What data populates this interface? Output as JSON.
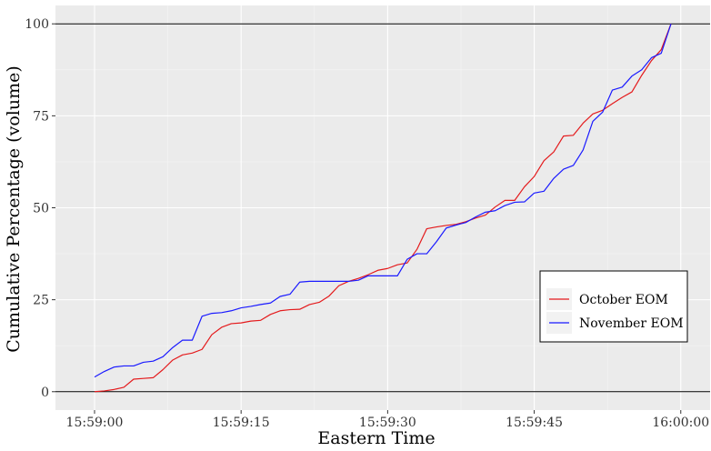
{
  "chart_data": {
    "type": "line",
    "title": "",
    "xlabel": "Eastern Time",
    "ylabel": "Cumulative Percentage (volume)",
    "x_unit": "seconds from 15:59:00",
    "xlim": [
      -4,
      63
    ],
    "ylim": [
      -5,
      105
    ],
    "x_ticks": [
      {
        "value": 0,
        "label": "15:59:00"
      },
      {
        "value": 15,
        "label": "15:59:15"
      },
      {
        "value": 30,
        "label": "15:59:30"
      },
      {
        "value": 45,
        "label": "15:59:45"
      },
      {
        "value": 60,
        "label": "16:00:00"
      }
    ],
    "y_ticks": [
      {
        "value": 0,
        "label": "0"
      },
      {
        "value": 25,
        "label": "25"
      },
      {
        "value": 50,
        "label": "50"
      },
      {
        "value": 75,
        "label": "75"
      },
      {
        "value": 100,
        "label": "100"
      }
    ],
    "hlines": [
      0,
      100
    ],
    "grid": true,
    "legend_position": "bottom-right",
    "series": [
      {
        "name": "October EOM",
        "color": "#e41a1c",
        "x": [
          0,
          1,
          2,
          3,
          4,
          5,
          6,
          7,
          8,
          9,
          10,
          11,
          12,
          13,
          14,
          15,
          16,
          17,
          18,
          19,
          20,
          21,
          22,
          23,
          24,
          25,
          26,
          27,
          28,
          29,
          30,
          31,
          32,
          33,
          34,
          35,
          36,
          37,
          38,
          39,
          40,
          41,
          42,
          43,
          44,
          45,
          46,
          47,
          48,
          49,
          50,
          51,
          52,
          53,
          54,
          55,
          56,
          57,
          58,
          59
        ],
        "y": [
          0,
          0.2,
          0.6,
          1.2,
          3.4,
          3.6,
          3.8,
          6,
          8.6,
          10,
          10.5,
          11.5,
          15.5,
          17.5,
          18.5,
          18.7,
          19.2,
          19.4,
          21,
          22,
          22.3,
          22.4,
          23.7,
          24.3,
          26,
          28.8,
          30,
          30.8,
          31.8,
          33,
          33.5,
          34.5,
          35,
          38.7,
          44.3,
          44.8,
          45.2,
          45.5,
          46.2,
          47.2,
          48,
          50.2,
          52,
          52,
          55.7,
          58.5,
          62.8,
          65.2,
          69.5,
          69.7,
          73,
          75.5,
          76.5,
          78.3,
          80,
          81.5,
          86,
          90,
          93,
          100
        ]
      },
      {
        "name": "November EOM",
        "color": "#1a1aff",
        "x": [
          0,
          1,
          2,
          3,
          4,
          5,
          6,
          7,
          8,
          9,
          10,
          11,
          12,
          13,
          14,
          15,
          16,
          17,
          18,
          19,
          20,
          21,
          22,
          23,
          24,
          25,
          26,
          27,
          28,
          29,
          30,
          31,
          32,
          33,
          34,
          35,
          36,
          37,
          38,
          39,
          40,
          41,
          42,
          43,
          44,
          45,
          46,
          47,
          48,
          49,
          50,
          51,
          52,
          53,
          54,
          55,
          56,
          57,
          58,
          59
        ],
        "y": [
          4,
          5.5,
          6.7,
          7,
          7,
          8,
          8.3,
          9.5,
          12,
          14,
          14,
          20.5,
          21.3,
          21.5,
          22,
          22.8,
          23.2,
          23.7,
          24.1,
          25.9,
          26.5,
          29.8,
          30,
          30,
          30,
          30,
          30,
          30.3,
          31.5,
          31.5,
          31.5,
          31.5,
          36,
          37.5,
          37.5,
          40.8,
          44.5,
          45.3,
          46,
          47.5,
          48.8,
          49.2,
          50.6,
          51.5,
          51.6,
          54,
          54.5,
          58,
          60.5,
          61.5,
          65.7,
          73.5,
          76,
          82,
          82.8,
          85.8,
          87.5,
          90.8,
          92,
          100
        ]
      }
    ]
  }
}
